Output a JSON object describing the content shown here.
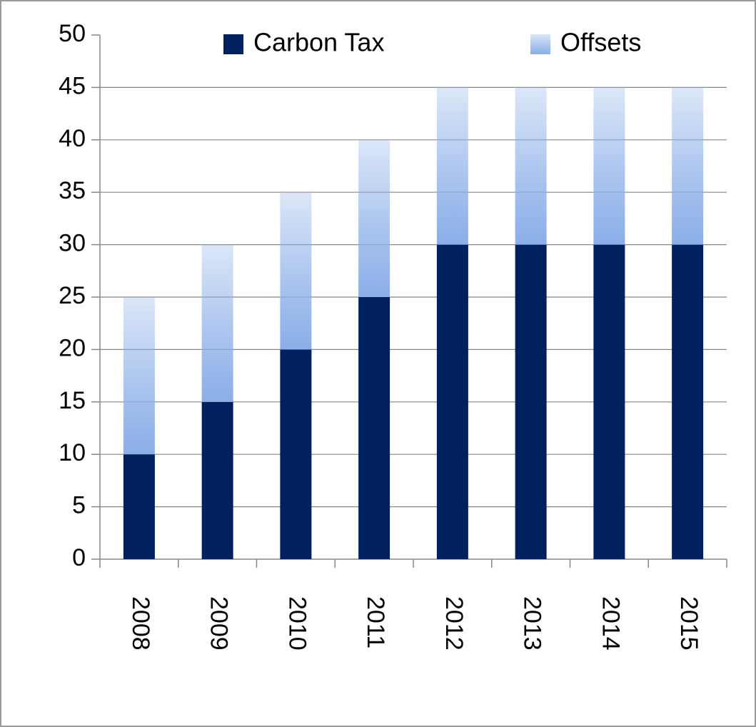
{
  "chart_data": {
    "type": "bar",
    "stacked": true,
    "categories": [
      "2008",
      "2009",
      "2010",
      "2011",
      "2012",
      "2013",
      "2014",
      "2015"
    ],
    "series": [
      {
        "name": "Carbon Tax",
        "color": "#002060",
        "values": [
          10,
          15,
          20,
          25,
          30,
          30,
          30,
          30
        ]
      },
      {
        "name": "Offsets",
        "color": "#8aaee8",
        "gradient": true,
        "values": [
          15,
          15,
          15,
          15,
          15,
          15,
          15,
          15
        ]
      }
    ],
    "ylim": [
      0,
      50
    ],
    "yticks": [
      0,
      5,
      10,
      15,
      20,
      25,
      30,
      35,
      40,
      45,
      50
    ],
    "grid": true,
    "legend": "top"
  }
}
